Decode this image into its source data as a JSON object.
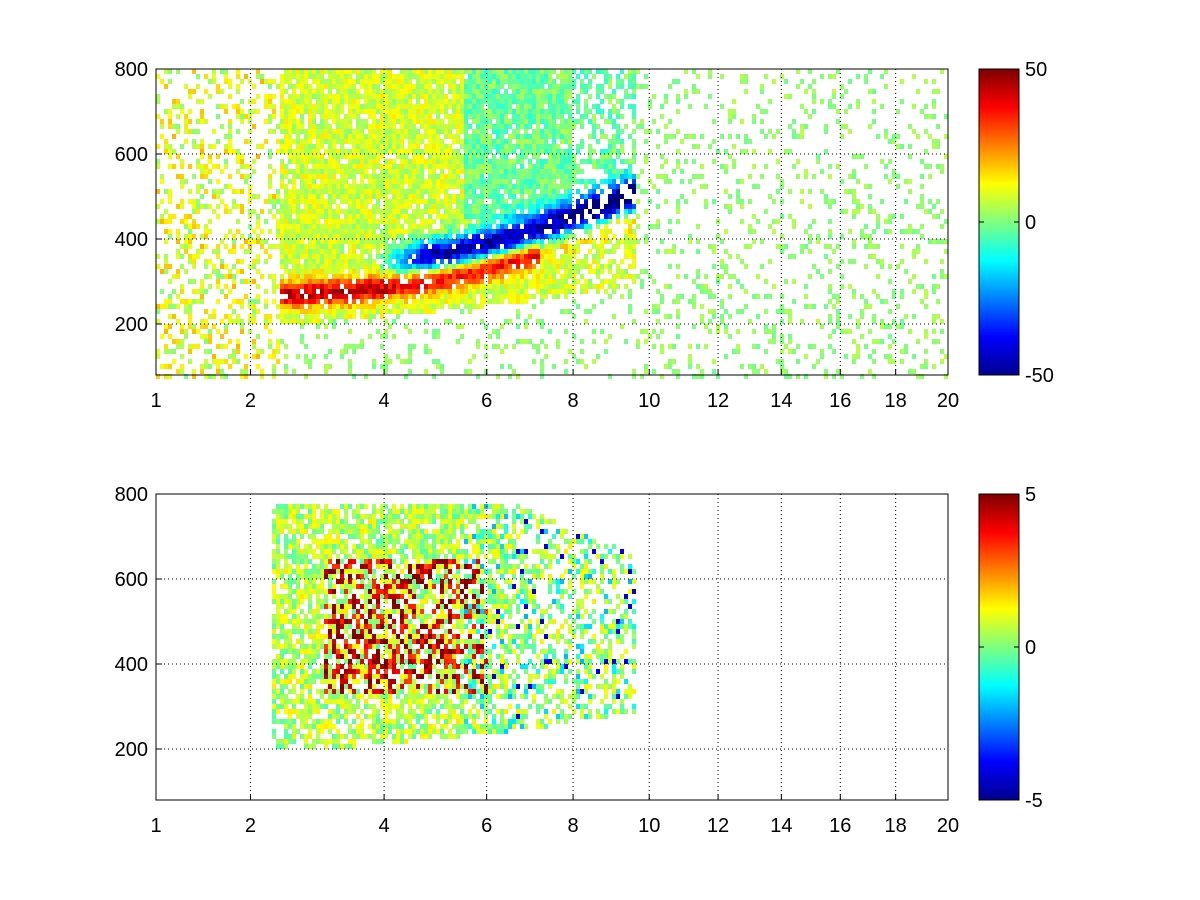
{
  "chart_data": [
    {
      "type": "heatmap",
      "title": "",
      "xlabel": "",
      "ylabel": "",
      "xlim": [
        1,
        20
      ],
      "ylim": [
        80,
        800
      ],
      "xticks": [
        1,
        2,
        4,
        6,
        8,
        10,
        12,
        14,
        16,
        18,
        20
      ],
      "xtick_labels": [
        "1",
        "2",
        "4",
        "6",
        "8",
        "10",
        "12",
        "14",
        "16",
        "18",
        "20"
      ],
      "xtick_scale": "sqrt",
      "yticks": [
        200,
        400,
        600,
        800
      ],
      "ytick_labels": [
        "200",
        "400",
        "600",
        "800"
      ],
      "grid": true,
      "colormap": "jet",
      "clim": [
        -50,
        50
      ],
      "colorbar_ticks": [
        50,
        0,
        -50
      ],
      "colorbar_labels": [
        "50",
        "0",
        "-50"
      ],
      "description_of_field": [
        {
          "region": "dense band",
          "x_range": [
            2.5,
            9.5
          ],
          "y_range": [
            200,
            800
          ],
          "typical_value": 10
        },
        {
          "region": "positive ridge",
          "x_range": [
            2.6,
            7.0
          ],
          "y_center": [
            280,
            400
          ],
          "value": 35
        },
        {
          "region": "negative ridge",
          "x_range": [
            3.8,
            7.5
          ],
          "y_center": [
            300,
            420
          ],
          "value": -35
        },
        {
          "region": "sparse columns",
          "x_range": [
            10,
            20
          ],
          "y_range": [
            80,
            800
          ],
          "typical_value": 3
        }
      ]
    },
    {
      "type": "heatmap",
      "title": "",
      "xlabel": "",
      "ylabel": "",
      "xlim": [
        1,
        20
      ],
      "ylim": [
        80,
        800
      ],
      "xticks": [
        1,
        2,
        4,
        6,
        8,
        10,
        12,
        14,
        16,
        18,
        20
      ],
      "xtick_labels": [
        "1",
        "2",
        "4",
        "6",
        "8",
        "10",
        "12",
        "14",
        "16",
        "18",
        "20"
      ],
      "xtick_scale": "sqrt",
      "yticks": [
        200,
        400,
        600,
        800
      ],
      "ytick_labels": [
        "200",
        "400",
        "600",
        "800"
      ],
      "grid": true,
      "colormap": "jet",
      "clim": [
        -5,
        5
      ],
      "colorbar_ticks": [
        5,
        0,
        -5
      ],
      "colorbar_labels": [
        "5",
        "0",
        "-5"
      ],
      "description_of_field": [
        {
          "region": "wedge",
          "x_range": [
            2.3,
            9.6
          ],
          "y_range": [
            200,
            780
          ],
          "typical_value": 0.5
        },
        {
          "region": "high cluster",
          "x_range": [
            3.0,
            6.0
          ],
          "y_range": [
            350,
            650
          ],
          "value": 4
        },
        {
          "region": "low tail",
          "x_range": [
            5.5,
            8.5
          ],
          "y_range": [
            220,
            500
          ],
          "value": -1
        }
      ]
    }
  ]
}
